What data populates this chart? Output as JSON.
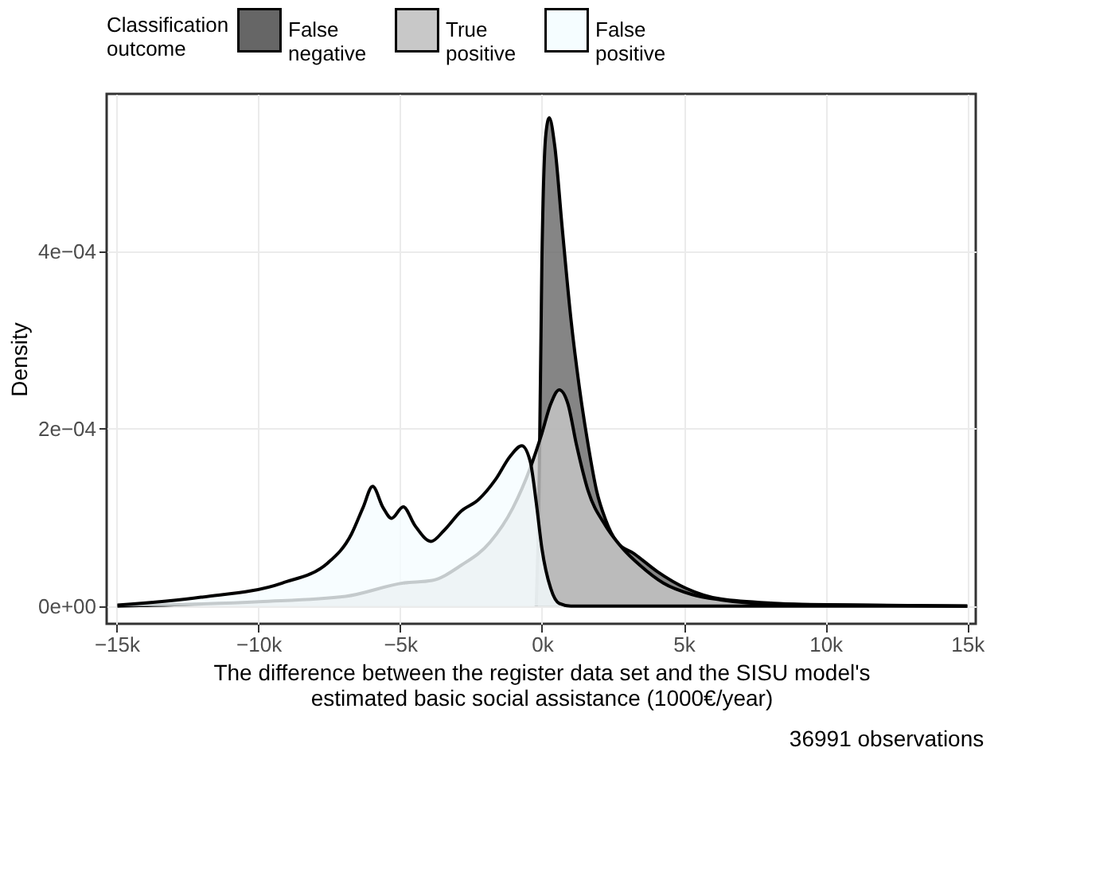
{
  "chart_data": {
    "type": "area",
    "xlabel": "The difference between the register data set and the SISU model's estimated basic social assistance (1000€/year)",
    "ylabel": "Density",
    "legend_title": "Classification outcome",
    "legend": "top",
    "grid": true,
    "annotations": [
      "36991 observations"
    ],
    "xlim": [
      -15350,
      15300
    ],
    "ylim": [
      -2e-05,
      0.000578
    ],
    "xticks": [
      {
        "value": -15000,
        "label": "−15k"
      },
      {
        "value": -10000,
        "label": "−10k"
      },
      {
        "value": -5000,
        "label": "−5k"
      },
      {
        "value": 0,
        "label": "0k"
      },
      {
        "value": 5000,
        "label": "5k"
      },
      {
        "value": 10000,
        "label": "10k"
      },
      {
        "value": 15000,
        "label": "15k"
      }
    ],
    "yticks": [
      {
        "value": 0,
        "label": "0e+00"
      },
      {
        "value": 0.0002,
        "label": "2e−04"
      },
      {
        "value": 0.0004,
        "label": "4e−04"
      }
    ],
    "series": [
      {
        "name": "False negative",
        "color": "#666666",
        "x": [
          -200,
          -100,
          0,
          140,
          260,
          450,
          710,
          1020,
          1320,
          1630,
          1930,
          2240,
          2650,
          3260,
          4070,
          5090,
          6310,
          8350,
          10390,
          15000
        ],
        "values": [
          0,
          0.00013,
          0.00039,
          0.000533,
          0.000551,
          0.00052,
          0.000429,
          0.000325,
          0.000247,
          0.000182,
          0.00013,
          9.8e-05,
          7.2e-05,
          5.9e-05,
          3.9e-05,
          2e-05,
          8e-06,
          3e-06,
          1e-06,
          0
        ]
      },
      {
        "name": "True positive",
        "color": "#c8c8c8",
        "x": [
          -14970,
          -9980,
          -6920,
          -4890,
          -3870,
          -2850,
          -1830,
          -1020,
          -410,
          0,
          310,
          610,
          920,
          1220,
          1630,
          2240,
          2850,
          3460,
          4280,
          5300,
          6310,
          8350,
          15000
        ],
        "values": [
          0,
          5e-06,
          1.1e-05,
          2.6e-05,
          2.9e-05,
          4.6e-05,
          7.2e-05,
          0.000111,
          0.000156,
          0.000195,
          0.000228,
          0.000244,
          0.000228,
          0.000182,
          0.00013,
          9.1e-05,
          6.5e-05,
          4.6e-05,
          2.6e-05,
          1.3e-05,
          7e-06,
          2e-06,
          0
        ]
      },
      {
        "name": "False positive",
        "color": "#f5fdff",
        "x": [
          -14970,
          -12020,
          -9160,
          -7540,
          -6720,
          -6310,
          -5970,
          -5600,
          -5300,
          -4890,
          -4480,
          -3910,
          -3460,
          -2850,
          -2240,
          -1630,
          -1120,
          -710,
          -410,
          -200,
          0,
          310,
          610,
          1020,
          15000
        ],
        "values": [
          1e-06,
          1e-05,
          2.6e-05,
          4.9e-05,
          8.1e-05,
          0.000111,
          0.000135,
          0.000111,
          9.9e-05,
          0.000112,
          9.1e-05,
          7.3e-05,
          8.5e-05,
          0.000107,
          0.00012,
          0.000143,
          0.000169,
          0.000181,
          0.000163,
          0.000117,
          6.5e-05,
          2e-05,
          3e-06,
          0,
          0
        ]
      }
    ]
  }
}
